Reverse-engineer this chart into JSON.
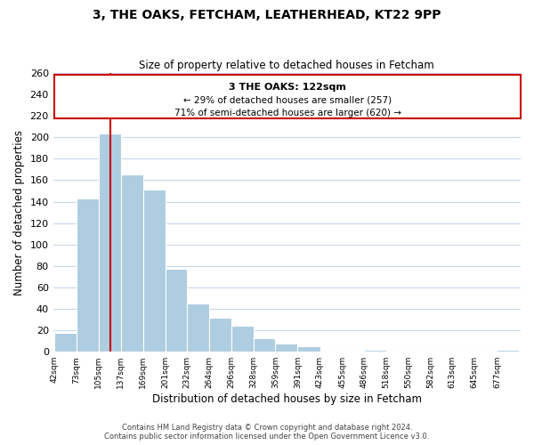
{
  "title": "3, THE OAKS, FETCHAM, LEATHERHEAD, KT22 9PP",
  "subtitle": "Size of property relative to detached houses in Fetcham",
  "xlabel": "Distribution of detached houses by size in Fetcham",
  "ylabel": "Number of detached properties",
  "bar_color": "#aecde1",
  "bar_edge_color": "#b8d4e3",
  "bin_labels": [
    "42sqm",
    "73sqm",
    "105sqm",
    "137sqm",
    "169sqm",
    "201sqm",
    "232sqm",
    "264sqm",
    "296sqm",
    "328sqm",
    "359sqm",
    "391sqm",
    "423sqm",
    "455sqm",
    "486sqm",
    "518sqm",
    "550sqm",
    "582sqm",
    "613sqm",
    "645sqm",
    "677sqm"
  ],
  "bar_heights": [
    18,
    143,
    204,
    165,
    151,
    77,
    45,
    32,
    24,
    13,
    8,
    5,
    0,
    0,
    2,
    0,
    0,
    0,
    0,
    0,
    2
  ],
  "ylim": [
    0,
    260
  ],
  "yticks": [
    0,
    20,
    40,
    60,
    80,
    100,
    120,
    140,
    160,
    180,
    200,
    220,
    240,
    260
  ],
  "property_line_x": 122,
  "bin_edges_numeric": [
    42,
    73,
    105,
    137,
    169,
    201,
    232,
    264,
    296,
    328,
    359,
    391,
    423,
    455,
    486,
    518,
    550,
    582,
    613,
    645,
    677,
    709
  ],
  "annotation_title": "3 THE OAKS: 122sqm",
  "annotation_line1": "← 29% of detached houses are smaller (257)",
  "annotation_line2": "71% of semi-detached houses are larger (620) →",
  "red_line_color": "#cc0000",
  "annotation_box_color": "#ffffff",
  "annotation_box_edge": "#cc0000",
  "footer1": "Contains HM Land Registry data © Crown copyright and database right 2024.",
  "footer2": "Contains public sector information licensed under the Open Government Licence v3.0.",
  "background_color": "#ffffff",
  "grid_color": "#c8d8e8"
}
